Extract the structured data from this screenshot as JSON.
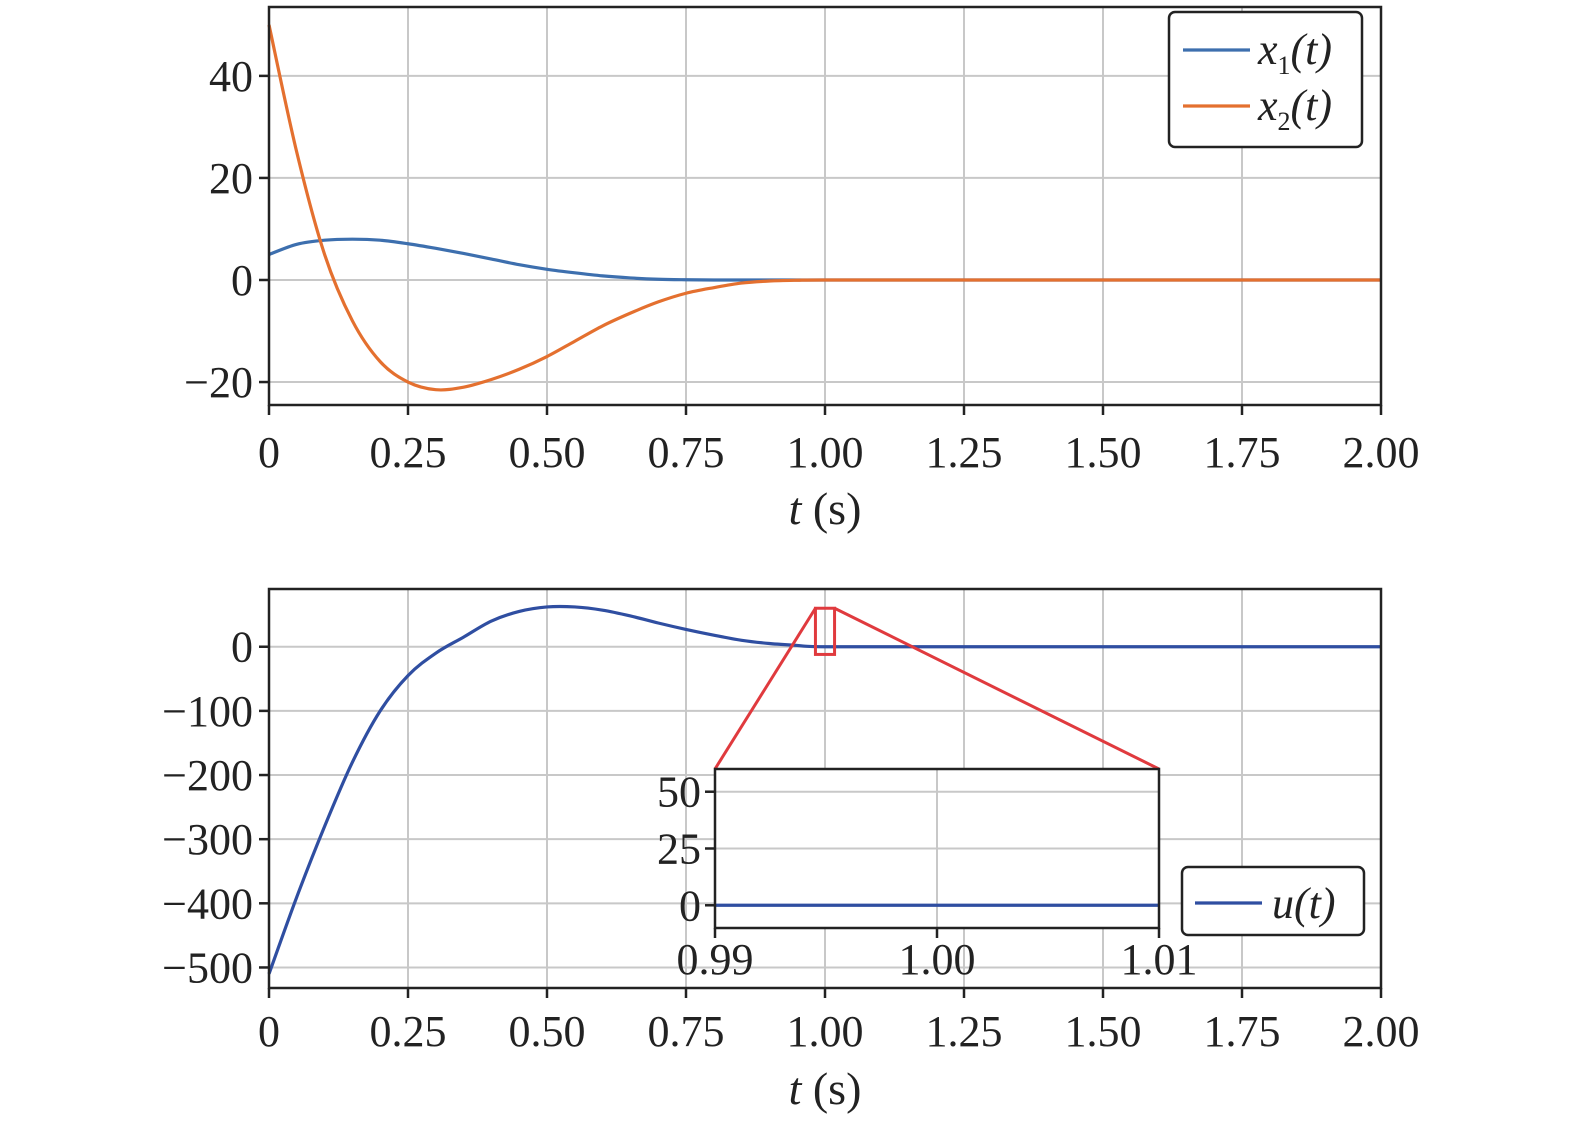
{
  "chart_data": [
    {
      "type": "line",
      "xlabel_var": "t",
      "xlabel_unit": "(s)",
      "xlim": [
        0,
        2.0
      ],
      "ylim": [
        -24.5,
        53.5
      ],
      "xticks": [
        0,
        0.25,
        0.5,
        0.75,
        1.0,
        1.25,
        1.5,
        1.75,
        2.0
      ],
      "xtick_labels": [
        "0",
        "0.25",
        "0.50",
        "0.75",
        "1.00",
        "1.25",
        "1.50",
        "1.75",
        "2.00"
      ],
      "yticks": [
        -20,
        0,
        20,
        40
      ],
      "ytick_labels": [
        "−20",
        "0",
        "20",
        "40"
      ],
      "grid": true,
      "legend": "top-right",
      "series": [
        {
          "name": "x1(t)",
          "legend_var": "x",
          "legend_sub": "1",
          "legend_arg": "(t)",
          "color": "#3d6fae",
          "x": [
            0,
            0.05,
            0.1,
            0.15,
            0.2,
            0.25,
            0.3,
            0.35,
            0.4,
            0.45,
            0.5,
            0.55,
            0.6,
            0.65,
            0.7,
            0.75,
            0.8,
            0.85,
            0.9,
            0.95,
            1.0,
            1.25,
            1.5,
            1.75,
            2.0
          ],
          "y": [
            5,
            7,
            7.8,
            8,
            7.8,
            7.1,
            6.2,
            5.2,
            4.1,
            3,
            2.1,
            1.4,
            0.8,
            0.4,
            0.15,
            0.05,
            0,
            0,
            0,
            0,
            0,
            0,
            0,
            0,
            0
          ]
        },
        {
          "name": "x2(t)",
          "legend_var": "x",
          "legend_sub": "2",
          "legend_arg": "(t)",
          "color": "#e4702f",
          "x": [
            0,
            0.05,
            0.1,
            0.15,
            0.2,
            0.25,
            0.3,
            0.35,
            0.4,
            0.45,
            0.5,
            0.55,
            0.6,
            0.65,
            0.7,
            0.75,
            0.8,
            0.85,
            0.9,
            0.95,
            1.0,
            1.25,
            1.5,
            1.75,
            2.0
          ],
          "y": [
            50,
            25,
            5,
            -8,
            -16,
            -20,
            -21.5,
            -21,
            -19.5,
            -17.5,
            -15,
            -12,
            -9,
            -6.5,
            -4.3,
            -2.6,
            -1.5,
            -0.6,
            -0.2,
            -0.05,
            0,
            0,
            0,
            0,
            0
          ]
        }
      ]
    },
    {
      "type": "line",
      "xlabel_var": "t",
      "xlabel_unit": "(s)",
      "xlim": [
        0,
        2.0
      ],
      "ylim": [
        -532,
        90
      ],
      "xticks": [
        0,
        0.25,
        0.5,
        0.75,
        1.0,
        1.25,
        1.5,
        1.75,
        2.0
      ],
      "xtick_labels": [
        "0",
        "0.25",
        "0.50",
        "0.75",
        "1.00",
        "1.25",
        "1.50",
        "1.75",
        "2.00"
      ],
      "yticks": [
        -500,
        -400,
        -300,
        -200,
        -100,
        0
      ],
      "ytick_labels": [
        "−500",
        "−400",
        "−300",
        "−200",
        "−100",
        "0"
      ],
      "grid": true,
      "legend": "lower-right",
      "series": [
        {
          "name": "u(t)",
          "legend_var": "u",
          "legend_arg": "(t)",
          "color": "#2f4ea1",
          "x": [
            0,
            0.05,
            0.1,
            0.15,
            0.2,
            0.25,
            0.3,
            0.35,
            0.4,
            0.45,
            0.5,
            0.55,
            0.6,
            0.65,
            0.7,
            0.75,
            0.8,
            0.85,
            0.9,
            0.95,
            1.0,
            1.25,
            1.5,
            1.75,
            2.0
          ],
          "y": [
            -510,
            -390,
            -280,
            -180,
            -100,
            -45,
            -10,
            15,
            40,
            55,
            62,
            62,
            57,
            48,
            37,
            27,
            18,
            10,
            5,
            2,
            0,
            0,
            0,
            0,
            0
          ]
        }
      ],
      "zoom_box": {
        "x": [
          0.99,
          1.01
        ],
        "y": [
          -12,
          60
        ],
        "color": "#e03a3e"
      },
      "inset": {
        "xlim": [
          0.99,
          1.01
        ],
        "ylim": [
          -10,
          60
        ],
        "xticks": [
          0.99,
          1.0,
          1.01
        ],
        "xtick_labels": [
          "0.99",
          "1.00",
          "1.01"
        ],
        "yticks": [
          0,
          25,
          50
        ],
        "ytick_labels": [
          "0",
          "25",
          "50"
        ],
        "series": {
          "x": [
            0.99,
            1.01
          ],
          "y": [
            0,
            0
          ]
        }
      }
    }
  ]
}
